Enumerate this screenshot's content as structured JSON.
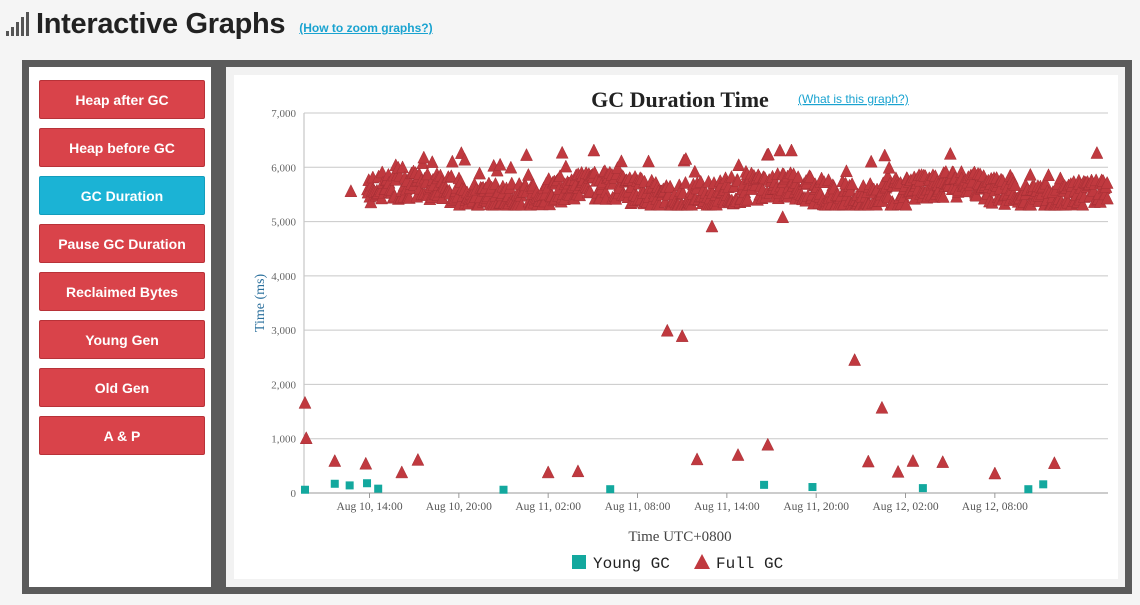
{
  "header": {
    "title": "Interactive Graphs",
    "help_link": "(How to zoom graphs?)"
  },
  "sidebar": {
    "items": [
      {
        "label": "Heap after GC",
        "active": false
      },
      {
        "label": "Heap before GC",
        "active": false
      },
      {
        "label": "GC Duration",
        "active": true
      },
      {
        "label": "Pause GC Duration",
        "active": false
      },
      {
        "label": "Reclaimed Bytes",
        "active": false
      },
      {
        "label": "Young Gen",
        "active": false
      },
      {
        "label": "Old Gen",
        "active": false
      },
      {
        "label": "A & P",
        "active": false
      }
    ]
  },
  "colors": {
    "nav_button": "#d9434a",
    "nav_button_active": "#1bb3d5",
    "young_gc": "#13a89e",
    "full_gc": "#c0393f"
  },
  "chart_data": {
    "type": "scatter",
    "title": "GC Duration Time",
    "help_link": "(What is this graph?)",
    "xlabel": "Time UTC+0800",
    "ylabel": "Time (ms)",
    "ylim": [
      0,
      7000
    ],
    "yticks": [
      "0",
      "1,000",
      "2,000",
      "3,000",
      "4,000",
      "5,000",
      "6,000",
      "7,000"
    ],
    "xlim": [
      "2023-08-10T09:36",
      "2023-08-12T15:36"
    ],
    "xticks": [
      {
        "t": "2023-08-10T14:00",
        "label": "Aug 10, 14:00"
      },
      {
        "t": "2023-08-10T20:00",
        "label": "Aug 10, 20:00"
      },
      {
        "t": "2023-08-11T02:00",
        "label": "Aug 11, 02:00"
      },
      {
        "t": "2023-08-11T08:00",
        "label": "Aug 11, 08:00"
      },
      {
        "t": "2023-08-11T14:00",
        "label": "Aug 11, 14:00"
      },
      {
        "t": "2023-08-11T20:00",
        "label": "Aug 11, 20:00"
      },
      {
        "t": "2023-08-12T02:00",
        "label": "Aug 12, 02:00"
      },
      {
        "t": "2023-08-12T08:00",
        "label": "Aug 12, 08:00"
      }
    ],
    "grid": "horizontal",
    "legend": "bottom-center",
    "series": [
      {
        "name": "Young GC",
        "marker": "square",
        "color": "#13a89e",
        "points": [
          {
            "t": "2023-08-10T09:40",
            "y": 60
          },
          {
            "t": "2023-08-10T11:40",
            "y": 170
          },
          {
            "t": "2023-08-10T12:40",
            "y": 140
          },
          {
            "t": "2023-08-10T13:50",
            "y": 180
          },
          {
            "t": "2023-08-10T14:35",
            "y": 80
          },
          {
            "t": "2023-08-10T23:00",
            "y": 60
          },
          {
            "t": "2023-08-11T06:10",
            "y": 70
          },
          {
            "t": "2023-08-11T16:30",
            "y": 150
          },
          {
            "t": "2023-08-11T19:45",
            "y": 110
          },
          {
            "t": "2023-08-12T03:10",
            "y": 90
          },
          {
            "t": "2023-08-12T10:15",
            "y": 70
          },
          {
            "t": "2023-08-12T11:15",
            "y": 160
          }
        ]
      },
      {
        "name": "Full GC",
        "marker": "triangle",
        "color": "#c0393f",
        "points": [
          {
            "t": "2023-08-10T09:40",
            "y": 1650
          },
          {
            "t": "2023-08-10T09:45",
            "y": 1000
          },
          {
            "t": "2023-08-10T11:40",
            "y": 580
          },
          {
            "t": "2023-08-10T12:45",
            "y": 5550
          },
          {
            "t": "2023-08-10T13:45",
            "y": 530
          },
          {
            "t": "2023-08-10T16:10",
            "y": 370
          },
          {
            "t": "2023-08-10T17:15",
            "y": 600
          },
          {
            "t": "2023-08-11T02:00",
            "y": 370
          },
          {
            "t": "2023-08-11T04:00",
            "y": 390
          },
          {
            "t": "2023-08-11T10:00",
            "y": 2980
          },
          {
            "t": "2023-08-11T11:00",
            "y": 2880
          },
          {
            "t": "2023-08-11T13:00",
            "y": 4900
          },
          {
            "t": "2023-08-11T12:00",
            "y": 610
          },
          {
            "t": "2023-08-11T14:45",
            "y": 690
          },
          {
            "t": "2023-08-11T16:45",
            "y": 880
          },
          {
            "t": "2023-08-11T17:45",
            "y": 5070
          },
          {
            "t": "2023-08-11T22:35",
            "y": 2440
          },
          {
            "t": "2023-08-11T23:30",
            "y": 570
          },
          {
            "t": "2023-08-12T00:25",
            "y": 1560
          },
          {
            "t": "2023-08-12T01:30",
            "y": 380
          },
          {
            "t": "2023-08-12T02:30",
            "y": 580
          },
          {
            "t": "2023-08-12T04:30",
            "y": 560
          },
          {
            "t": "2023-08-12T08:00",
            "y": 350
          },
          {
            "t": "2023-08-12T12:00",
            "y": 540
          }
        ],
        "dense_band": {
          "t_start": "2023-08-10T13:50",
          "t_end": "2023-08-12T15:36",
          "y_min": 5300,
          "y_max": 6300
        }
      }
    ]
  }
}
